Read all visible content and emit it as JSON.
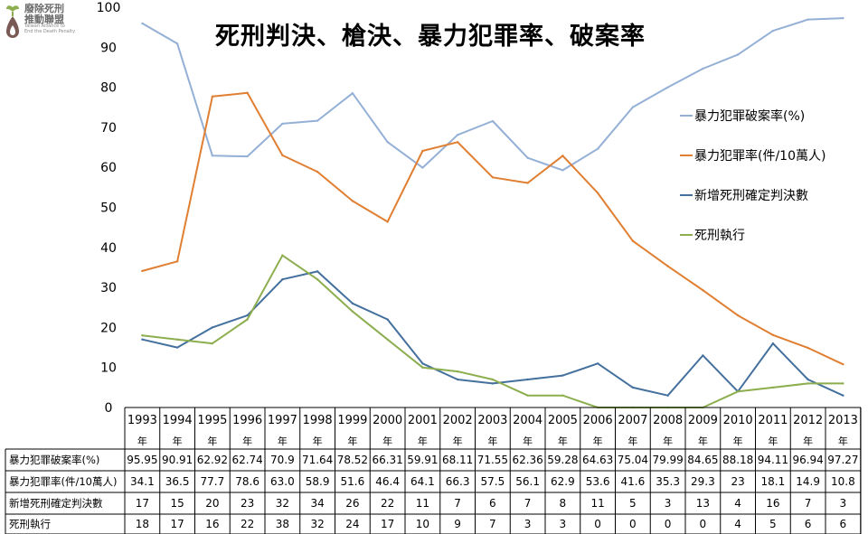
{
  "logo": {
    "name_line1": "廢除死刑",
    "name_line2": "推動聯盟",
    "en_line1": "Taiwan Alliance to",
    "en_line2": "End the Death Penalty",
    "icon": "seedling-drop-icon"
  },
  "chart_data": {
    "type": "line",
    "title": "死刑判決、槍決、暴力犯罪率、破案率",
    "categories": [
      "1993",
      "1994",
      "1995",
      "1996",
      "1997",
      "1998",
      "1999",
      "2000",
      "2001",
      "2002",
      "2003",
      "2004",
      "2005",
      "2006",
      "2007",
      "2008",
      "2009",
      "2010",
      "2011",
      "2012",
      "2013"
    ],
    "category_suffix": "年",
    "ylim": [
      0,
      100
    ],
    "yticks": [
      0,
      10,
      20,
      30,
      40,
      50,
      60,
      70,
      80,
      90,
      100
    ],
    "grid": false,
    "legend_position": "right",
    "series": [
      {
        "name": "暴力犯罪破案率(%)",
        "color": "#94B0D6",
        "values": [
          95.95,
          90.91,
          62.92,
          62.74,
          70.9,
          71.64,
          78.52,
          66.31,
          59.91,
          68.11,
          71.55,
          62.36,
          59.28,
          64.63,
          75.04,
          79.99,
          84.65,
          88.18,
          94.11,
          96.94,
          97.27
        ],
        "labels": [
          "95.95",
          "90.91",
          "62.92",
          "62.74",
          "70.9",
          "71.64",
          "78.52",
          "66.31",
          "59.91",
          "68.11",
          "71.55",
          "62.36",
          "59.28",
          "64.63",
          "75.04",
          "79.99",
          "84.65",
          "88.18",
          "94.11",
          "96.94",
          "97.27"
        ]
      },
      {
        "name": "暴力犯罪率(件/10萬人)",
        "color": "#E07F32",
        "values": [
          34.1,
          36.5,
          77.7,
          78.6,
          63.0,
          58.9,
          51.6,
          46.4,
          64.1,
          66.3,
          57.5,
          56.1,
          62.9,
          53.6,
          41.6,
          35.3,
          29.3,
          23,
          18.1,
          14.9,
          10.8
        ],
        "labels": [
          "34.1",
          "36.5",
          "77.7",
          "78.6",
          "63.0",
          "58.9",
          "51.6",
          "46.4",
          "64.1",
          "66.3",
          "57.5",
          "56.1",
          "62.9",
          "53.6",
          "41.6",
          "35.3",
          "29.3",
          "23",
          "18.1",
          "14.9",
          "10.8"
        ]
      },
      {
        "name": "新增死刑確定判決數",
        "color": "#44709E",
        "values": [
          17,
          15,
          20,
          23,
          32,
          34,
          26,
          22,
          11,
          7,
          6,
          7,
          8,
          11,
          5,
          3,
          13,
          4,
          16,
          7,
          3
        ],
        "labels": [
          "17",
          "15",
          "20",
          "23",
          "32",
          "34",
          "26",
          "22",
          "11",
          "7",
          "6",
          "7",
          "8",
          "11",
          "5",
          "3",
          "13",
          "4",
          "16",
          "7",
          "3"
        ]
      },
      {
        "name": "死刑執行",
        "color": "#8CAE4E",
        "values": [
          18,
          17,
          16,
          22,
          38,
          32,
          24,
          17,
          10,
          9,
          7,
          3,
          3,
          0,
          0,
          0,
          0,
          4,
          5,
          6,
          6
        ],
        "labels": [
          "18",
          "17",
          "16",
          "22",
          "38",
          "32",
          "24",
          "17",
          "10",
          "9",
          "7",
          "3",
          "3",
          "0",
          "0",
          "0",
          "0",
          "4",
          "5",
          "6",
          "6"
        ]
      }
    ]
  }
}
